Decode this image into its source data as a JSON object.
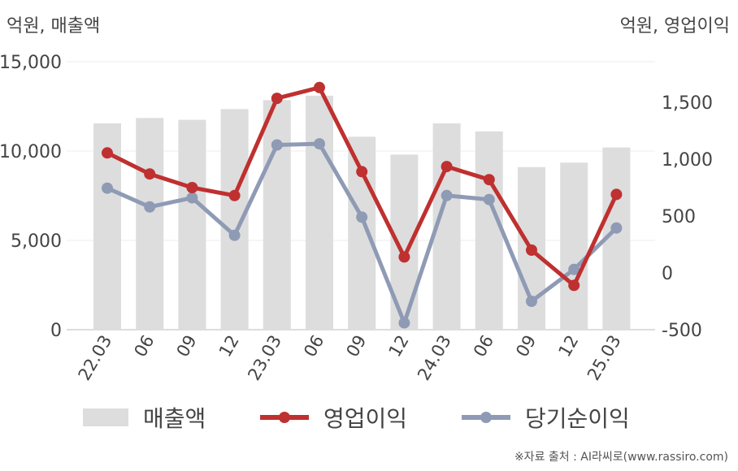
{
  "chart_data": {
    "type": "bar+line",
    "left_axis_unit": "억원, 매출액",
    "right_axis_unit": "억원, 영업이익",
    "categories": [
      "22.03",
      "06",
      "09",
      "12",
      "23.03",
      "06",
      "09",
      "12",
      "24.03",
      "06",
      "09",
      "12",
      "25.03"
    ],
    "left_ticks": [
      "0",
      "5,000",
      "10,000",
      "15,000"
    ],
    "right_ticks": [
      "-500",
      "0",
      "500",
      "1,000",
      "1,500"
    ],
    "left_ylim": [
      0,
      15000
    ],
    "right_ylim": [
      -500,
      1500
    ],
    "grid": true,
    "legend_position": "bottom",
    "series": [
      {
        "name": "매출액",
        "type": "bar",
        "axis": "left",
        "color": "#dddddd",
        "values": [
          11550,
          11850,
          11750,
          12350,
          12850,
          13100,
          10800,
          9800,
          11550,
          11100,
          9100,
          9350,
          10200
        ]
      },
      {
        "name": "영업이익",
        "type": "line",
        "axis": "right",
        "color": "#bf3030",
        "values": [
          1055,
          870,
          750,
          680,
          1535,
          1630,
          890,
          140,
          935,
          820,
          200,
          -110,
          690
        ]
      },
      {
        "name": "당기순이익",
        "type": "line",
        "axis": "right",
        "color": "#8f9bb5",
        "values": [
          745,
          580,
          660,
          330,
          1125,
          1135,
          490,
          -440,
          680,
          645,
          -250,
          30,
          395
        ]
      }
    ]
  },
  "source_text": "※자료 출처 : AI라씨로(www.rassiro.com)"
}
